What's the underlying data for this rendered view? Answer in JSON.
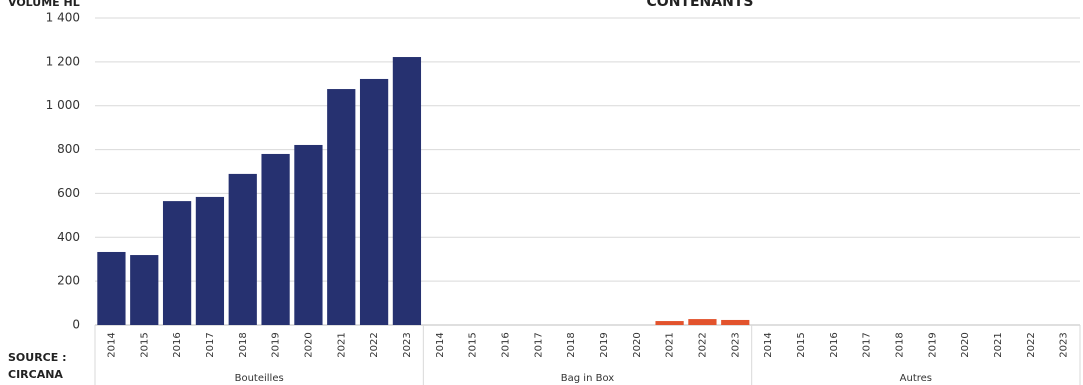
{
  "chart_data": {
    "type": "bar",
    "title": "CONTENANTS",
    "y_label": "VOLUME HL",
    "source": [
      "SOURCE :",
      "CIRCANA"
    ],
    "ylim": [
      0,
      1400
    ],
    "yticks": [
      0,
      200,
      400,
      600,
      800,
      {
        "value": 1000,
        "label": "1 000"
      },
      {
        "value": 1200,
        "label": "1 200"
      },
      {
        "value": 1400,
        "label": "1 400"
      }
    ],
    "grid": true,
    "groups": [
      {
        "name": "Bouteilles",
        "color": "#263170",
        "categories": [
          "2014",
          "2015",
          "2016",
          "2017",
          "2018",
          "2019",
          "2020",
          "2021",
          "2022",
          "2023"
        ],
        "values": [
          333,
          319,
          565,
          584,
          689,
          780,
          821,
          1076,
          1122,
          1222
        ]
      },
      {
        "name": "Bag in Box",
        "color": "#e2532d",
        "categories": [
          "2014",
          "2015",
          "2016",
          "2017",
          "2018",
          "2019",
          "2020",
          "2021",
          "2022",
          "2023"
        ],
        "values": [
          0,
          0,
          0,
          0,
          0,
          0,
          0,
          18,
          27,
          23
        ]
      },
      {
        "name": "Autres",
        "categories": [
          "2014",
          "2015",
          "2016",
          "2017",
          "2018",
          "2019",
          "2020",
          "2021",
          "2022",
          "2023"
        ],
        "values": [
          0,
          0,
          0,
          0,
          0,
          0,
          0,
          0,
          0,
          0
        ]
      }
    ]
  }
}
